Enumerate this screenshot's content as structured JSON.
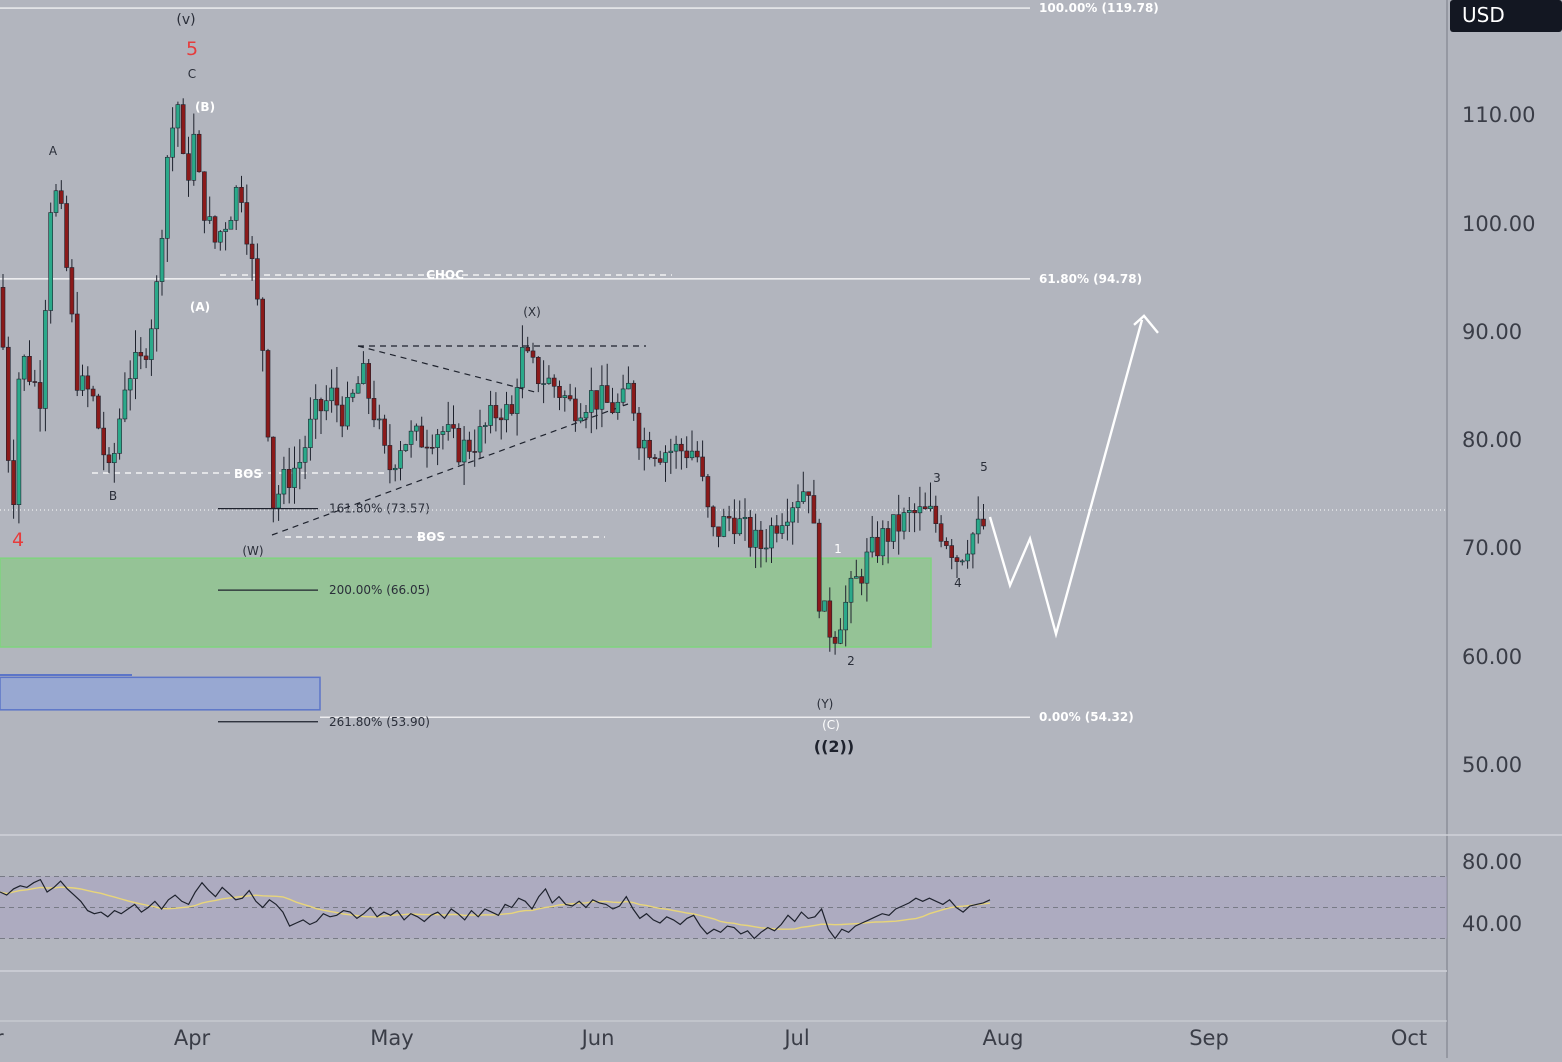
{
  "chart_data": {
    "type": "candlestick",
    "currency_label": "USD",
    "price_axis": {
      "ticks": [
        "110.00",
        "100.00",
        "90.00",
        "80.00",
        "70.00",
        "60.00",
        "50.00"
      ],
      "ylim": [
        45.5,
        120.5
      ]
    },
    "time_axis": {
      "ticks": [
        "r",
        "Apr",
        "May",
        "Jun",
        "Jul",
        "Aug",
        "Sep",
        "Oct"
      ]
    },
    "fib_retracement": [
      {
        "label": "100.00% (119.78)",
        "price": 119.78
      },
      {
        "label": "61.80% (94.78)",
        "price": 94.78
      },
      {
        "label": "0.00% (54.32)",
        "price": 54.32
      }
    ],
    "fib_extension": [
      {
        "label": "161.80% (73.57)",
        "price": 73.57
      },
      {
        "label": "200.00% (66.05)",
        "price": 66.05
      },
      {
        "label": "261.80% (53.90)",
        "price": 53.9
      }
    ],
    "structure_labels": [
      {
        "text": "CHOC",
        "price": 95.3
      },
      {
        "text": "BOS",
        "price": 77.3
      },
      {
        "text": "BOS",
        "price": 71.0
      }
    ],
    "wave_labels": [
      "(v)",
      "5",
      "C",
      "(B)",
      "A",
      "(A)",
      "B",
      "4",
      "(W)",
      "(X)",
      "1",
      "2",
      "(Y)",
      "(C)",
      "((2))",
      "3",
      "4",
      "5"
    ],
    "zones": [
      {
        "name": "demand zone",
        "color": "#8fc68f",
        "price_low": 60.8,
        "price_high": 69.0
      },
      {
        "name": "order block",
        "color": "#93a6d6",
        "price_low": 58.0,
        "price_high": 55.0
      }
    ],
    "projection": [
      72.8,
      66.5,
      70.8,
      62.0,
      91.0
    ],
    "rsi": {
      "ticks": [
        "80.00",
        "40.00"
      ],
      "ylim": [
        5,
        100
      ],
      "levels": [
        70,
        50,
        30
      ],
      "band": [
        30,
        70
      ],
      "values": [
        60,
        58,
        62,
        64,
        63,
        66,
        68,
        60,
        63,
        67,
        62,
        58,
        54,
        48,
        46,
        47,
        44,
        48,
        46,
        49,
        52,
        47,
        50,
        54,
        49,
        55,
        58,
        54,
        52,
        60,
        66,
        61,
        57,
        63,
        59,
        55,
        56,
        61,
        54,
        50,
        55,
        52,
        47,
        38,
        40,
        42,
        39,
        41,
        46,
        44,
        45,
        48,
        47,
        43,
        46,
        50,
        44,
        47,
        45,
        48,
        42,
        46,
        44,
        41,
        45,
        47,
        43,
        49,
        46,
        42,
        48,
        44,
        49,
        47,
        45,
        52,
        50,
        56,
        54,
        49,
        57,
        62,
        53,
        57,
        52,
        51,
        54,
        50,
        55,
        53,
        52,
        49,
        51,
        57,
        49,
        43,
        46,
        42,
        40,
        44,
        42,
        39,
        43,
        45,
        38,
        33,
        36,
        34,
        38,
        37,
        33,
        35,
        30,
        34,
        37,
        35,
        39,
        45,
        41,
        47,
        43,
        44,
        49,
        36,
        30,
        36,
        34,
        38,
        40,
        42,
        44,
        46,
        45,
        49,
        51,
        53,
        56,
        54,
        56,
        54,
        52,
        55,
        50,
        47,
        51,
        52,
        53,
        55
      ]
    },
    "line_color_up": "#2ba98a",
    "line_color_down": "#8b1a1a"
  }
}
